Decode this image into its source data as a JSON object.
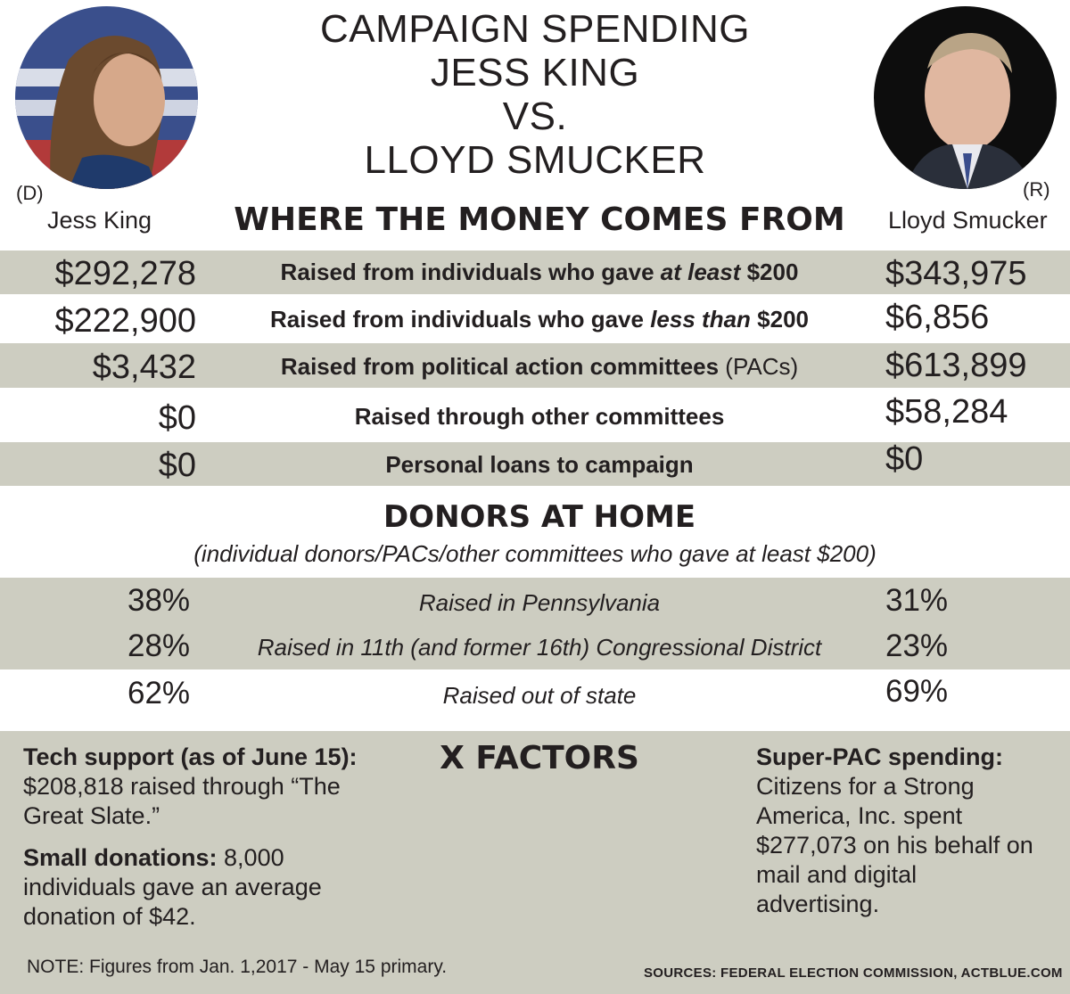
{
  "title": {
    "line1": "CAMPAIGN SPENDING",
    "line2": "JESS KING",
    "line3": "VS.",
    "line4": "LLOYD SMUCKER"
  },
  "candidates": {
    "left": {
      "party": "(D)",
      "name": "Jess King"
    },
    "right": {
      "party": "(R)",
      "name": "Lloyd Smucker"
    }
  },
  "money": {
    "heading": "WHERE THE MONEY COMES FROM",
    "rows": [
      {
        "left": "$292,278",
        "label_pre": "Raised from individuals who gave ",
        "label_em": "at least",
        "label_post": " $200",
        "right": "$343,975"
      },
      {
        "left": "$222,900",
        "label_pre": "Raised from individuals who gave ",
        "label_em": "less than",
        "label_post": " $200",
        "right": "$6,856"
      },
      {
        "left": "$3,432",
        "label_pre": "Raised from political action committees",
        "label_em": "",
        "label_post": " (PACs)",
        "right": "$613,899"
      },
      {
        "left": "$0",
        "label_pre": "Raised through other committees",
        "label_em": "",
        "label_post": "",
        "right": "$58,284"
      },
      {
        "left": "$0",
        "label_pre": "Personal loans to campaign",
        "label_em": "",
        "label_post": "",
        "right": "$0"
      }
    ]
  },
  "home": {
    "heading": "DONORS AT HOME",
    "subheading": "(individual donors/PACs/other committees who gave at least $200)",
    "rows": [
      {
        "left": "38%",
        "label": "Raised in Pennsylvania",
        "right": "31%"
      },
      {
        "left": "28%",
        "label": "Raised in 11th (and former 16th) Congressional District",
        "right": "23%"
      },
      {
        "left": "62%",
        "label": "Raised out of state",
        "right": "69%"
      }
    ]
  },
  "xfactors": {
    "heading": "X FACTORS",
    "left": {
      "tech_label": "Tech support (as of June 15):",
      "tech_text": "$208,818 raised through “The Great Slate.”",
      "small_label": "Small donations:",
      "small_text": " 8,000 individuals gave an average donation of $42."
    },
    "right": {
      "superpac_label": "Super-PAC spending:",
      "superpac_text": "Citizens for a Strong America, Inc. spent $277,073 on his behalf on mail and digital advertising."
    }
  },
  "note": "NOTE: Figures from Jan. 1,2017 - May 15 primary.",
  "sources": "SOURCES:  FEDERAL ELECTION COMMISSION, ACTBLUE.COM",
  "colors": {
    "band": "#cdcdc1",
    "text": "#231f20"
  }
}
